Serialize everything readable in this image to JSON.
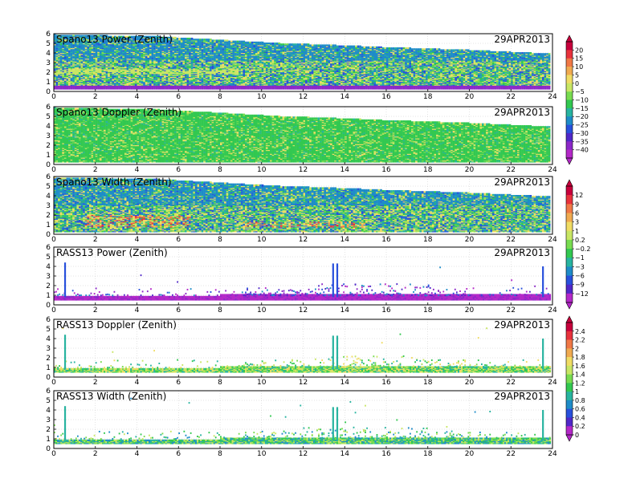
{
  "chart_data": [
    {
      "type": "heatmap",
      "title": "Spano13 Power (Zenith)",
      "date": "29APR2013",
      "x_ticks": [
        "0",
        "2",
        "4",
        "6",
        "8",
        "10",
        "12",
        "14",
        "16",
        "18",
        "20",
        "22",
        "24"
      ],
      "y_ticks": [
        "0",
        "1",
        "2",
        "3",
        "4",
        "5",
        "6"
      ],
      "xlim": [
        0,
        24
      ],
      "ylim": [
        0,
        6
      ],
      "colorbar": 1,
      "grid": true
    },
    {
      "type": "heatmap",
      "title": "Spano13 Doppler (Zenith)",
      "date": "29APR2013",
      "x_ticks": [
        "0",
        "2",
        "4",
        "6",
        "8",
        "10",
        "12",
        "14",
        "16",
        "18",
        "20",
        "22",
        "24"
      ],
      "y_ticks": [
        "0",
        "1",
        "2",
        "3",
        "4",
        "5",
        "6"
      ],
      "xlim": [
        0,
        24
      ],
      "ylim": [
        0,
        6
      ],
      "colorbar": 1,
      "grid": true
    },
    {
      "type": "heatmap",
      "title": "Spano13 Width (Zenith)",
      "date": "29APR2013",
      "x_ticks": [
        "0",
        "2",
        "4",
        "6",
        "8",
        "10",
        "12",
        "14",
        "16",
        "18",
        "20",
        "22",
        "24"
      ],
      "y_ticks": [
        "0",
        "1",
        "2",
        "3",
        "4",
        "5",
        "6"
      ],
      "xlim": [
        0,
        24
      ],
      "ylim": [
        0,
        6
      ],
      "colorbar": 2,
      "grid": true
    },
    {
      "type": "heatmap",
      "title": "RASS13 Power (Zenith)",
      "date": "29APR2013",
      "x_ticks": [
        "0",
        "2",
        "4",
        "6",
        "8",
        "10",
        "12",
        "14",
        "16",
        "18",
        "20",
        "22",
        "24"
      ],
      "y_ticks": [
        "0",
        "1",
        "2",
        "3",
        "4",
        "5",
        "6"
      ],
      "xlim": [
        0,
        24
      ],
      "ylim": [
        0,
        6
      ],
      "colorbar": 2,
      "grid": true
    },
    {
      "type": "heatmap",
      "title": "RASS13 Doppler (Zenith)",
      "date": "29APR2013",
      "x_ticks": [
        "0",
        "2",
        "4",
        "6",
        "8",
        "10",
        "12",
        "14",
        "16",
        "18",
        "20",
        "22",
        "24"
      ],
      "y_ticks": [
        "0",
        "1",
        "2",
        "3",
        "4",
        "5",
        "6"
      ],
      "xlim": [
        0,
        24
      ],
      "ylim": [
        0,
        6
      ],
      "colorbar": 3,
      "grid": true
    },
    {
      "type": "heatmap",
      "title": "RASS13 Width (Zenith)",
      "date": "29APR2013",
      "x_ticks": [
        "0",
        "2",
        "4",
        "6",
        "8",
        "10",
        "12",
        "14",
        "16",
        "18",
        "20",
        "22",
        "24"
      ],
      "y_ticks": [
        "0",
        "1",
        "2",
        "3",
        "4",
        "5",
        "6"
      ],
      "xlim": [
        0,
        24
      ],
      "ylim": [
        0,
        6
      ],
      "colorbar": 3,
      "grid": true
    }
  ],
  "colorbars": [
    {
      "labels": [
        "20",
        "15",
        "10",
        "5",
        "0",
        "−5",
        "−10",
        "−15",
        "−20",
        "−25",
        "−30",
        "−35",
        "−40"
      ],
      "colors": [
        "#c8003c",
        "#e8323c",
        "#f07846",
        "#f0aa50",
        "#f0dc64",
        "#c8e664",
        "#78dc50",
        "#32c850",
        "#28b4a0",
        "#1e8cc8",
        "#2850dc",
        "#5028c8",
        "#8c28c8",
        "#b428c8"
      ]
    },
    {
      "labels": [
        "12",
        "9",
        "6",
        "3",
        "1",
        "0.2",
        "−0.2",
        "−1",
        "−3",
        "−6",
        "−9",
        "−12"
      ],
      "colors": [
        "#c8003c",
        "#e8323c",
        "#f07846",
        "#f0aa50",
        "#f0dc64",
        "#c8e664",
        "#78dc50",
        "#32c850",
        "#28b4a0",
        "#1e8cc8",
        "#2850dc",
        "#5028c8",
        "#b428c8"
      ]
    },
    {
      "labels": [
        "2.4",
        "2.2",
        "2",
        "1.8",
        "1.6",
        "1.4",
        "1.2",
        "1",
        "0.8",
        "0.6",
        "0.4",
        "0.2",
        "0"
      ],
      "colors": [
        "#c8003c",
        "#e8323c",
        "#f07846",
        "#f0aa50",
        "#f0dc64",
        "#c8e664",
        "#78dc50",
        "#32c850",
        "#28b4a0",
        "#1e8cc8",
        "#2850dc",
        "#5028c8",
        "#b428c8"
      ]
    }
  ]
}
